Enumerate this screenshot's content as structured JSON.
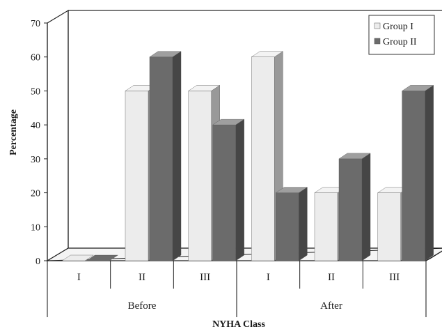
{
  "chart_data": {
    "type": "bar",
    "ylabel": "Percentage",
    "xlabel": "NYHA Class",
    "ylim": [
      0,
      70
    ],
    "yticks": [
      "0",
      "10",
      "20",
      "30",
      "40",
      "50",
      "60",
      "70"
    ],
    "groups": [
      {
        "label": "Before",
        "categories": [
          "I",
          "II",
          "III"
        ]
      },
      {
        "label": "After",
        "categories": [
          "I",
          "II",
          "III"
        ]
      }
    ],
    "series": [
      {
        "name": "Group I",
        "color": "#ececec",
        "values": [
          0,
          50,
          50,
          60,
          20,
          20
        ]
      },
      {
        "name": "Group II",
        "color": "#6b6b6b",
        "values": [
          0,
          60,
          40,
          20,
          30,
          50
        ]
      }
    ],
    "legend_position": "top-right",
    "grid": false,
    "style": "3d"
  }
}
